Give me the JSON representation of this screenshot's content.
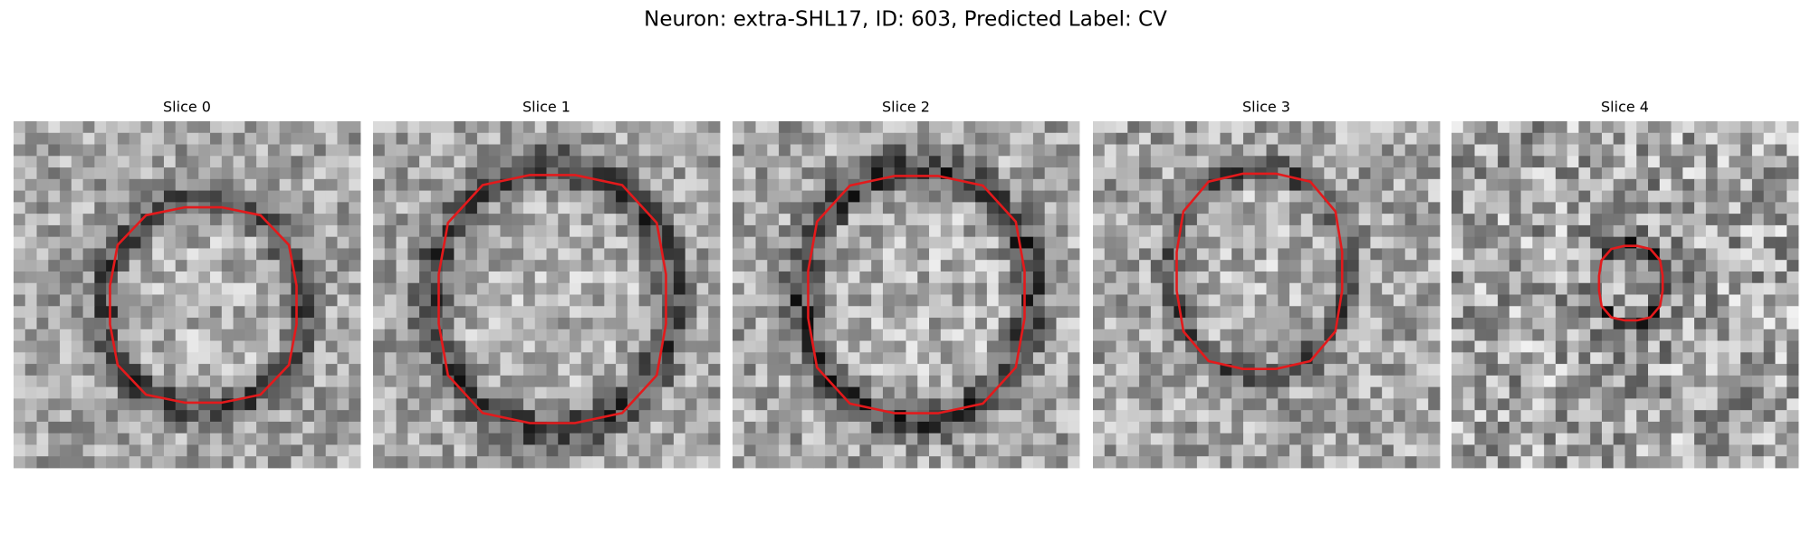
{
  "title": "Neuron: extra-SHL17, ID: 603, Predicted Label: CV",
  "panels": [
    {
      "label": "Slice 0"
    },
    {
      "label": "Slice 1"
    },
    {
      "label": "Slice 2"
    },
    {
      "label": "Slice 3"
    },
    {
      "label": "Slice 4"
    }
  ]
}
